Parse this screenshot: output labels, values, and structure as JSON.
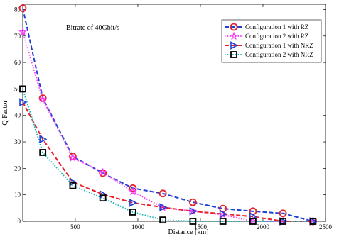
{
  "chart_data": {
    "type": "line",
    "title": "",
    "annotation": "Bitrate of 40Gbit/s",
    "xlabel": "Distance [km]",
    "ylabel": "Q Factor",
    "xlim": [
      80,
      2500
    ],
    "ylim": [
      0,
      82
    ],
    "xticks": [
      500,
      1000,
      1500,
      2000,
      2500
    ],
    "yticks": [
      0,
      10,
      20,
      30,
      40,
      50,
      60,
      70,
      80
    ],
    "legend_position": "top-right",
    "series": [
      {
        "name": "Configuration 1 with RZ",
        "color": "#1f3fd6",
        "line_style": "dashed",
        "marker": "circle",
        "marker_color": "#e8202a",
        "x": [
          80,
          240,
          480,
          720,
          960,
          1200,
          1440,
          1680,
          1920,
          2160,
          2400
        ],
        "y": [
          80.5,
          46.5,
          24.5,
          18.2,
          12.5,
          10.5,
          7.2,
          4.8,
          3.8,
          3.0,
          0
        ]
      },
      {
        "name": "Configuration 2 with RZ",
        "color": "#ff44ff",
        "line_style": "dotted",
        "marker": "star",
        "marker_color": "#ff33ff",
        "x": [
          80,
          240,
          480,
          720,
          960,
          1200,
          1440,
          1680,
          1920,
          2160,
          2400
        ],
        "y": [
          71.5,
          46.0,
          24.0,
          18.5,
          11.2,
          5.2,
          3.8,
          2.5,
          0,
          0,
          0
        ]
      },
      {
        "name": "Configuration 1 with NRZ",
        "color": "#e8202a",
        "line_style": "dashed",
        "marker": "triangle-right",
        "marker_color": "#1f3fd6",
        "x": [
          80,
          240,
          480,
          720,
          960,
          1200,
          1440,
          1680,
          1920,
          2160,
          2400
        ],
        "y": [
          45.0,
          31.0,
          14.8,
          10.2,
          7.0,
          5.3,
          3.8,
          2.8,
          1.8,
          0,
          0
        ]
      },
      {
        "name": "Configuration 2 with NRZ",
        "color": "#1bb3b3",
        "line_style": "dotted",
        "marker": "square",
        "marker_color": "#000000",
        "x": [
          80,
          240,
          480,
          720,
          960,
          1200,
          1440,
          1680,
          1920,
          2160,
          2400
        ],
        "y": [
          50.0,
          26.0,
          13.5,
          8.8,
          3.5,
          0.5,
          0,
          0,
          0,
          0,
          0
        ]
      }
    ]
  }
}
